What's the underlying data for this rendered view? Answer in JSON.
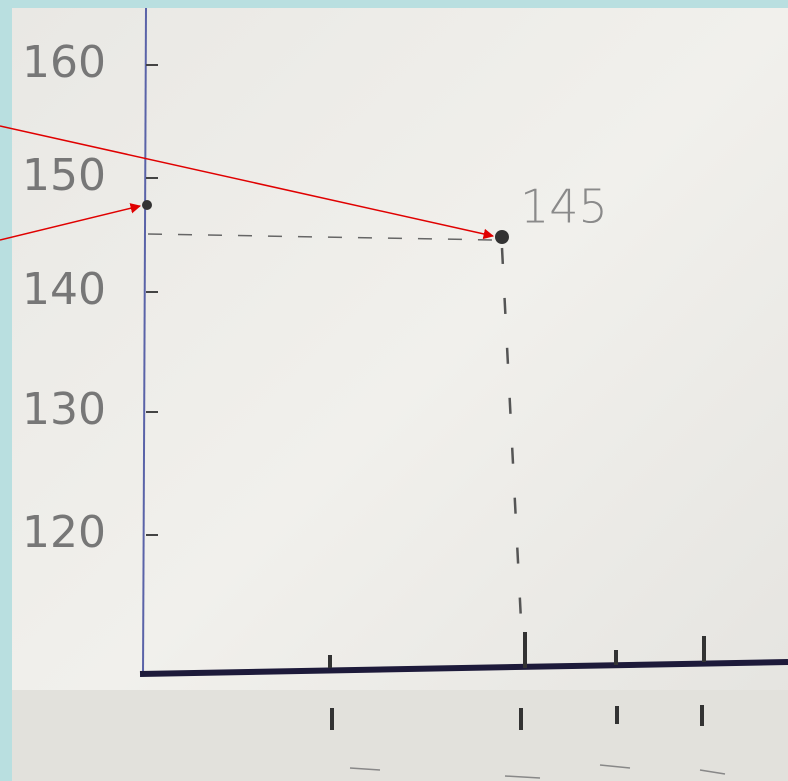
{
  "axis_labels": [
    "160",
    "150",
    "140",
    "130",
    "120"
  ],
  "point_label": "145"
}
